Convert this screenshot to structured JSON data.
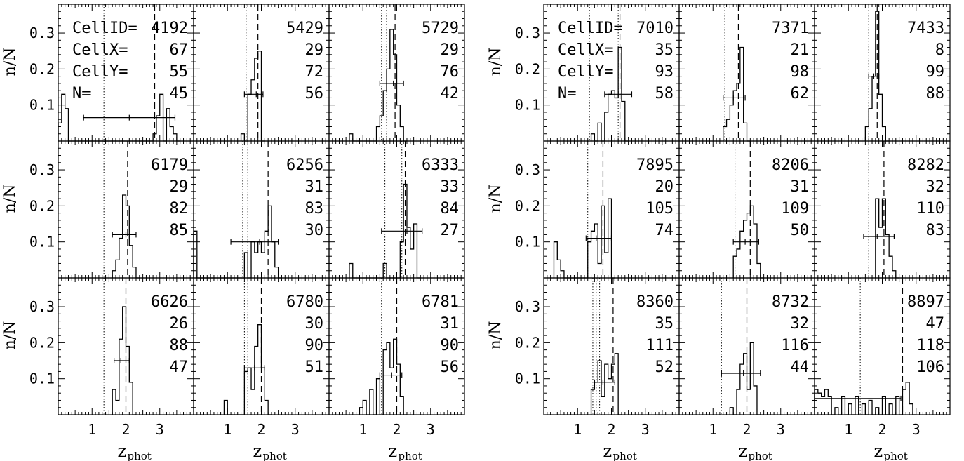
{
  "labels": {
    "ylabel": "n/N",
    "xlabel_main": "z",
    "xlabel_sub": "phot",
    "cellid_prefix": "CellID=",
    "cellx_prefix": "CellX=",
    "celly_prefix": "CellY=",
    "n_prefix": "N="
  },
  "chart_data": {
    "type": "histogram-grid",
    "xlim": [
      0,
      4
    ],
    "ylim": [
      0,
      0.38
    ],
    "x_ticks": [
      1,
      2,
      3
    ],
    "y_ticks": [
      0.1,
      0.2,
      0.3
    ],
    "panels": [
      {
        "group": 0,
        "row": 0,
        "col": 0,
        "cell_id": "4192",
        "cell_x": "67",
        "cell_y": "55",
        "n": "45",
        "show_prefixes": true,
        "dotted": [
          1.35
        ],
        "dashed": [
          2.85
        ],
        "errorbar": {
          "x": 2.1,
          "y": 0.065,
          "xmin": 0.75,
          "xmax": 3.45
        },
        "hist": [
          [
            0.0,
            0.05
          ],
          [
            0.1,
            0.13
          ],
          [
            0.2,
            0.09
          ],
          [
            0.3,
            0.0
          ],
          [
            2.8,
            0.02
          ],
          [
            2.9,
            0.07
          ],
          [
            3.0,
            0.13
          ],
          [
            3.2,
            0.09
          ],
          [
            3.3,
            0.04
          ],
          [
            3.4,
            0.02
          ],
          [
            3.5,
            0.0
          ]
        ]
      },
      {
        "group": 0,
        "row": 0,
        "col": 1,
        "cell_id": "5429",
        "cell_x": "29",
        "cell_y": "72",
        "n": "56",
        "show_prefixes": false,
        "dotted": [
          1.55
        ],
        "dashed": [
          1.9
        ],
        "errorbar": {
          "x": 1.85,
          "y": 0.13,
          "xmin": 1.5,
          "xmax": 2.05
        },
        "hist": [
          [
            1.4,
            0.02
          ],
          [
            1.5,
            0.0
          ],
          [
            1.6,
            0.13
          ],
          [
            1.7,
            0.17
          ],
          [
            1.8,
            0.23
          ],
          [
            1.9,
            0.25
          ],
          [
            2.0,
            0.0
          ]
        ]
      },
      {
        "group": 0,
        "row": 0,
        "col": 2,
        "cell_id": "5729",
        "cell_x": "29",
        "cell_y": "76",
        "n": "42",
        "show_prefixes": false,
        "dotted": [
          1.55,
          1.7
        ],
        "dashed": [
          1.95
        ],
        "errorbar": {
          "x": 1.9,
          "y": 0.16,
          "xmin": 1.5,
          "xmax": 2.2
        },
        "hist": [
          [
            0.6,
            0.02
          ],
          [
            1.4,
            0.04
          ],
          [
            1.5,
            0.07
          ],
          [
            1.6,
            0.14
          ],
          [
            1.7,
            0.2
          ],
          [
            1.8,
            0.31
          ],
          [
            1.9,
            0.24
          ],
          [
            2.0,
            0.1
          ],
          [
            2.1,
            0.04
          ],
          [
            2.2,
            0.0
          ]
        ]
      },
      {
        "group": 0,
        "row": 1,
        "col": 0,
        "cell_id": "6179",
        "cell_x": "29",
        "cell_y": "82",
        "n": "85",
        "show_prefixes": false,
        "dotted": [
          1.35
        ],
        "dashed": [
          2.05
        ],
        "errorbar": {
          "x": 2.0,
          "y": 0.12,
          "xmin": 1.6,
          "xmax": 2.3
        },
        "hist": [
          [
            1.6,
            0.02
          ],
          [
            1.7,
            0.05
          ],
          [
            1.8,
            0.11
          ],
          [
            1.9,
            0.23
          ],
          [
            2.0,
            0.2
          ],
          [
            2.1,
            0.09
          ],
          [
            2.2,
            0.03
          ],
          [
            2.3,
            0.0
          ]
        ]
      },
      {
        "group": 0,
        "row": 1,
        "col": 1,
        "cell_id": "6256",
        "cell_x": "31",
        "cell_y": "83",
        "n": "30",
        "show_prefixes": false,
        "dotted": [
          1.45,
          1.6
        ],
        "dashed": [
          2.2
        ],
        "errorbar": {
          "x": 1.95,
          "y": 0.1,
          "xmin": 1.1,
          "xmax": 2.5
        },
        "hist": [
          [
            0.0,
            0.13
          ],
          [
            1.5,
            0.07
          ],
          [
            1.7,
            0.1
          ],
          [
            1.8,
            0.07
          ],
          [
            1.9,
            0.1
          ],
          [
            2.0,
            0.07
          ],
          [
            2.1,
            0.13
          ],
          [
            2.2,
            0.2
          ],
          [
            2.3,
            0.1
          ],
          [
            2.4,
            0.03
          ],
          [
            2.5,
            0.0
          ]
        ]
      },
      {
        "group": 0,
        "row": 1,
        "col": 2,
        "cell_id": "6333",
        "cell_x": "33",
        "cell_y": "84",
        "n": "27",
        "show_prefixes": false,
        "dotted": [
          1.65,
          2.15
        ],
        "dashed": [
          2.25
        ],
        "errorbar": {
          "x": 2.3,
          "y": 0.13,
          "xmin": 1.55,
          "xmax": 2.75
        },
        "hist": [
          [
            0.6,
            0.04
          ],
          [
            1.6,
            0.04
          ],
          [
            2.1,
            0.1
          ],
          [
            2.2,
            0.26
          ],
          [
            2.3,
            0.14
          ],
          [
            2.4,
            0.08
          ],
          [
            2.5,
            0.15
          ],
          [
            2.6,
            0.0
          ]
        ]
      },
      {
        "group": 0,
        "row": 2,
        "col": 0,
        "cell_id": "6626",
        "cell_x": "26",
        "cell_y": "88",
        "n": "47",
        "show_prefixes": false,
        "dotted": [
          1.35
        ],
        "dashed": [
          2.0
        ],
        "errorbar": {
          "x": 1.85,
          "y": 0.15,
          "xmin": 1.65,
          "xmax": 2.1
        },
        "hist": [
          [
            1.6,
            0.07
          ],
          [
            1.7,
            0.04
          ],
          [
            1.8,
            0.21
          ],
          [
            1.9,
            0.3
          ],
          [
            2.0,
            0.19
          ],
          [
            2.1,
            0.09
          ],
          [
            2.2,
            0.0
          ]
        ]
      },
      {
        "group": 0,
        "row": 2,
        "col": 1,
        "cell_id": "6780",
        "cell_x": "30",
        "cell_y": "90",
        "n": "51",
        "show_prefixes": false,
        "dotted": [
          1.5,
          1.6
        ],
        "dashed": [
          2.0
        ],
        "errorbar": {
          "x": 1.8,
          "y": 0.13,
          "xmin": 1.5,
          "xmax": 2.1
        },
        "hist": [
          [
            0.9,
            0.04
          ],
          [
            1.5,
            0.12
          ],
          [
            1.6,
            0.13
          ],
          [
            1.7,
            0.07
          ],
          [
            1.8,
            0.19
          ],
          [
            1.9,
            0.25
          ],
          [
            2.0,
            0.13
          ],
          [
            2.1,
            0.04
          ],
          [
            2.2,
            0.0
          ]
        ]
      },
      {
        "group": 0,
        "row": 2,
        "col": 2,
        "cell_id": "6781",
        "cell_x": "31",
        "cell_y": "90",
        "n": "56",
        "show_prefixes": false,
        "dotted": [
          1.55
        ],
        "dashed": [
          2.0
        ],
        "errorbar": {
          "x": 1.85,
          "y": 0.11,
          "xmin": 1.5,
          "xmax": 2.15
        },
        "hist": [
          [
            0.9,
            0.02
          ],
          [
            1.0,
            0.04
          ],
          [
            1.2,
            0.07
          ],
          [
            1.4,
            0.1
          ],
          [
            1.6,
            0.18
          ],
          [
            1.7,
            0.2
          ],
          [
            1.8,
            0.13
          ],
          [
            1.9,
            0.21
          ],
          [
            2.0,
            0.14
          ],
          [
            2.1,
            0.05
          ],
          [
            2.2,
            0.0
          ]
        ]
      },
      {
        "group": 1,
        "row": 0,
        "col": 0,
        "cell_id": "7010",
        "cell_x": "35",
        "cell_y": "93",
        "n": "58",
        "show_prefixes": true,
        "dotted": [
          1.35,
          2.2
        ],
        "dashed": [
          2.25
        ],
        "errorbar": {
          "x": 2.2,
          "y": 0.13,
          "xmin": 1.8,
          "xmax": 2.6
        },
        "hist": [
          [
            1.4,
            0.02
          ],
          [
            1.6,
            0.05
          ],
          [
            1.8,
            0.08
          ],
          [
            1.9,
            0.13
          ],
          [
            2.0,
            0.14
          ],
          [
            2.1,
            0.12
          ],
          [
            2.2,
            0.26
          ],
          [
            2.3,
            0.11
          ],
          [
            2.4,
            0.0
          ]
        ]
      },
      {
        "group": 1,
        "row": 0,
        "col": 1,
        "cell_id": "7371",
        "cell_x": "21",
        "cell_y": "98",
        "n": "62",
        "show_prefixes": false,
        "dotted": [
          1.35
        ],
        "dashed": [
          1.75
        ],
        "errorbar": {
          "x": 1.6,
          "y": 0.12,
          "xmin": 1.3,
          "xmax": 1.95
        },
        "hist": [
          [
            1.3,
            0.04
          ],
          [
            1.4,
            0.06
          ],
          [
            1.5,
            0.1
          ],
          [
            1.6,
            0.14
          ],
          [
            1.7,
            0.16
          ],
          [
            1.8,
            0.26
          ],
          [
            1.9,
            0.05
          ],
          [
            2.0,
            0.0
          ]
        ]
      },
      {
        "group": 1,
        "row": 0,
        "col": 2,
        "cell_id": "7433",
        "cell_x": "8",
        "cell_y": "99",
        "n": "88",
        "show_prefixes": false,
        "dotted": [
          1.6
        ],
        "dashed": [
          1.85
        ],
        "errorbar": {
          "x": 1.75,
          "y": 0.18,
          "xmin": 1.6,
          "xmax": 1.9
        },
        "hist": [
          [
            1.5,
            0.04
          ],
          [
            1.6,
            0.09
          ],
          [
            1.7,
            0.18
          ],
          [
            1.8,
            0.36
          ],
          [
            1.9,
            0.13
          ],
          [
            2.0,
            0.04
          ],
          [
            2.1,
            0.0
          ]
        ]
      },
      {
        "group": 1,
        "row": 1,
        "col": 0,
        "cell_id": "7895",
        "cell_x": "20",
        "cell_y": "105",
        "n": "74",
        "show_prefixes": false,
        "dotted": [
          1.3
        ],
        "dashed": [
          1.75
        ],
        "errorbar": {
          "x": 1.55,
          "y": 0.11,
          "xmin": 1.25,
          "xmax": 2.0
        },
        "hist": [
          [
            0.3,
            0.1
          ],
          [
            0.4,
            0.05
          ],
          [
            0.5,
            0.02
          ],
          [
            1.3,
            0.1
          ],
          [
            1.4,
            0.13
          ],
          [
            1.5,
            0.15
          ],
          [
            1.6,
            0.04
          ],
          [
            1.7,
            0.2
          ],
          [
            1.8,
            0.07
          ],
          [
            1.9,
            0.22
          ],
          [
            2.0,
            0.0
          ]
        ]
      },
      {
        "group": 1,
        "row": 1,
        "col": 1,
        "cell_id": "8206",
        "cell_x": "31",
        "cell_y": "109",
        "n": "50",
        "show_prefixes": false,
        "dotted": [
          1.65
        ],
        "dashed": [
          2.1
        ],
        "errorbar": {
          "x": 1.95,
          "y": 0.1,
          "xmin": 1.6,
          "xmax": 2.35
        },
        "hist": [
          [
            1.6,
            0.06
          ],
          [
            1.7,
            0.08
          ],
          [
            1.8,
            0.13
          ],
          [
            1.9,
            0.16
          ],
          [
            2.0,
            0.18
          ],
          [
            2.1,
            0.2
          ],
          [
            2.2,
            0.15
          ],
          [
            2.3,
            0.04
          ],
          [
            2.4,
            0.0
          ]
        ]
      },
      {
        "group": 1,
        "row": 1,
        "col": 2,
        "cell_id": "8282",
        "cell_x": "32",
        "cell_y": "110",
        "n": "83",
        "show_prefixes": false,
        "dotted": [
          1.6
        ],
        "dashed": [
          2.05
        ],
        "errorbar": {
          "x": 1.85,
          "y": 0.115,
          "xmin": 1.45,
          "xmax": 2.35
        },
        "hist": [
          [
            1.8,
            0.22
          ],
          [
            1.9,
            0.14
          ],
          [
            2.0,
            0.22
          ],
          [
            2.1,
            0.12
          ],
          [
            2.2,
            0.06
          ],
          [
            2.3,
            0.02
          ],
          [
            2.4,
            0.0
          ]
        ]
      },
      {
        "group": 1,
        "row": 2,
        "col": 0,
        "cell_id": "8360",
        "cell_x": "35",
        "cell_y": "111",
        "n": "52",
        "show_prefixes": false,
        "dotted": [
          1.45,
          1.55,
          1.65
        ],
        "dashed": [
          2.05
        ],
        "errorbar": {
          "x": 1.75,
          "y": 0.09,
          "xmin": 1.5,
          "xmax": 2.1
        },
        "hist": [
          [
            1.4,
            0.07
          ],
          [
            1.5,
            0.09
          ],
          [
            1.6,
            0.15
          ],
          [
            1.7,
            0.05
          ],
          [
            1.8,
            0.14
          ],
          [
            1.9,
            0.1
          ],
          [
            2.0,
            0.14
          ],
          [
            2.1,
            0.17
          ],
          [
            2.2,
            0.0
          ]
        ]
      },
      {
        "group": 1,
        "row": 2,
        "col": 1,
        "cell_id": "8732",
        "cell_x": "32",
        "cell_y": "116",
        "n": "44",
        "show_prefixes": false,
        "dotted": [
          1.25
        ],
        "dashed": [
          2.0
        ],
        "errorbar": {
          "x": 1.9,
          "y": 0.115,
          "xmin": 1.25,
          "xmax": 2.4
        },
        "hist": [
          [
            1.5,
            0.02
          ],
          [
            1.7,
            0.07
          ],
          [
            1.8,
            0.14
          ],
          [
            1.9,
            0.17
          ],
          [
            2.0,
            0.07
          ],
          [
            2.1,
            0.2
          ],
          [
            2.2,
            0.08
          ],
          [
            2.3,
            0.0
          ]
        ]
      },
      {
        "group": 1,
        "row": 2,
        "col": 2,
        "cell_id": "8897",
        "cell_x": "47",
        "cell_y": "118",
        "n": "106",
        "show_prefixes": false,
        "dotted": [
          1.35
        ],
        "dashed": [
          2.6
        ],
        "errorbar": {
          "x": 1.3,
          "y": 0.045,
          "xmin": 0.0,
          "xmax": 2.55
        },
        "hist": [
          [
            0.0,
            0.07
          ],
          [
            0.1,
            0.06
          ],
          [
            0.2,
            0.05
          ],
          [
            0.3,
            0.07
          ],
          [
            0.4,
            0.05
          ],
          [
            0.6,
            0.02
          ],
          [
            0.8,
            0.05
          ],
          [
            1.0,
            0.03
          ],
          [
            1.2,
            0.05
          ],
          [
            1.4,
            0.03
          ],
          [
            1.6,
            0.04
          ],
          [
            1.8,
            0.02
          ],
          [
            2.0,
            0.05
          ],
          [
            2.2,
            0.03
          ],
          [
            2.4,
            0.05
          ],
          [
            2.6,
            0.07
          ],
          [
            2.7,
            0.09
          ],
          [
            2.8,
            0.03
          ],
          [
            2.9,
            0.0
          ]
        ]
      }
    ]
  }
}
